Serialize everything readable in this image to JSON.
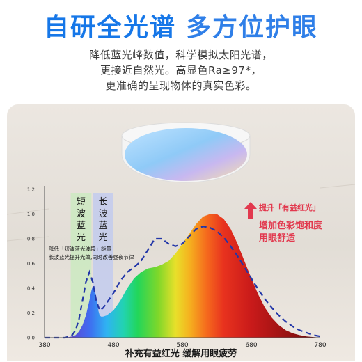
{
  "headline": {
    "part1": "自研全光谱",
    "part2": "多方位护眼"
  },
  "colors": {
    "headline1": "#1677e8",
    "headline2": "#2f7fe8",
    "accent_red": "#e2394e"
  },
  "subtitle": [
    "降低蓝光峰数值，科学模拟太阳光谱，",
    "更接近自然光。高显色Ra≥97*，",
    "更准确的呈现物体的真实色彩。"
  ],
  "illustration": {
    "lamp": "ceiling-lamp"
  },
  "chart_data": {
    "type": "area",
    "xlim": [
      380,
      780
    ],
    "ylim": [
      0,
      1.2
    ],
    "x_ticks": [
      380,
      480,
      580,
      680,
      780
    ],
    "x_tick_labels": [
      "380",
      "480",
      "580",
      "680",
      "780"
    ],
    "y_ticks": [
      0,
      0.2,
      0.4,
      0.6,
      0.8,
      1.0,
      1.2
    ],
    "y_tick_labels": [
      "0.0",
      "0.2",
      "0.4",
      "0.6",
      "0.8",
      "1.0",
      "1.2"
    ],
    "grid": false,
    "series": [
      {
        "style": "filled-spectrum",
        "x": [
          380,
          400,
          410,
          420,
          425,
          430,
          435,
          440,
          445,
          448,
          450,
          452,
          455,
          458,
          460,
          462,
          465,
          470,
          475,
          480,
          490,
          500,
          510,
          520,
          530,
          540,
          550,
          560,
          570,
          580,
          590,
          600,
          610,
          620,
          630,
          640,
          650,
          660,
          670,
          680,
          690,
          700,
          710,
          720,
          730,
          740,
          750,
          760,
          770,
          780
        ],
        "y": [
          0.0,
          0.0,
          0.0,
          0.01,
          0.02,
          0.05,
          0.1,
          0.18,
          0.3,
          0.38,
          0.42,
          0.4,
          0.33,
          0.22,
          0.18,
          0.17,
          0.17,
          0.18,
          0.2,
          0.22,
          0.3,
          0.4,
          0.48,
          0.53,
          0.56,
          0.57,
          0.59,
          0.62,
          0.68,
          0.76,
          0.84,
          0.92,
          0.98,
          1.0,
          1.0,
          0.96,
          0.88,
          0.76,
          0.62,
          0.48,
          0.35,
          0.24,
          0.16,
          0.1,
          0.06,
          0.035,
          0.02,
          0.01,
          0.005,
          0.0
        ]
      },
      {
        "style": "dashed",
        "color": "#2236a8",
        "x": [
          380,
          400,
          410,
          420,
          425,
          430,
          435,
          440,
          445,
          450,
          455,
          460,
          465,
          470,
          480,
          490,
          500,
          510,
          520,
          530,
          540,
          550,
          560,
          570,
          580,
          590,
          600,
          610,
          620,
          630,
          640,
          650,
          660,
          670,
          680,
          690,
          700,
          710,
          720,
          730,
          740,
          750,
          760,
          770,
          780
        ],
        "y": [
          0.0,
          0.0,
          0.0,
          0.02,
          0.06,
          0.15,
          0.3,
          0.45,
          0.53,
          0.45,
          0.3,
          0.22,
          0.24,
          0.28,
          0.36,
          0.46,
          0.53,
          0.57,
          0.62,
          0.71,
          0.8,
          0.8,
          0.76,
          0.74,
          0.76,
          0.82,
          0.88,
          0.9,
          0.89,
          0.86,
          0.81,
          0.74,
          0.66,
          0.57,
          0.48,
          0.39,
          0.31,
          0.24,
          0.18,
          0.13,
          0.09,
          0.06,
          0.04,
          0.02,
          0.01
        ]
      }
    ],
    "bands": [
      {
        "label": "短波蓝光",
        "x_range": [
          418,
          448
        ]
      },
      {
        "label": "长波蓝光",
        "x_range": [
          450,
          480
        ]
      }
    ],
    "annotations": {
      "band_note": [
        "降低「短波蓝光波段」能量",
        "长波蓝光提升光效,同时改善昼夜节律"
      ],
      "right_top": "提升「有益红光」",
      "right_main": [
        "增加色彩饱和度",
        "用眼舒适"
      ]
    },
    "caption": "补充有益红光 缓解用眼疲劳"
  }
}
